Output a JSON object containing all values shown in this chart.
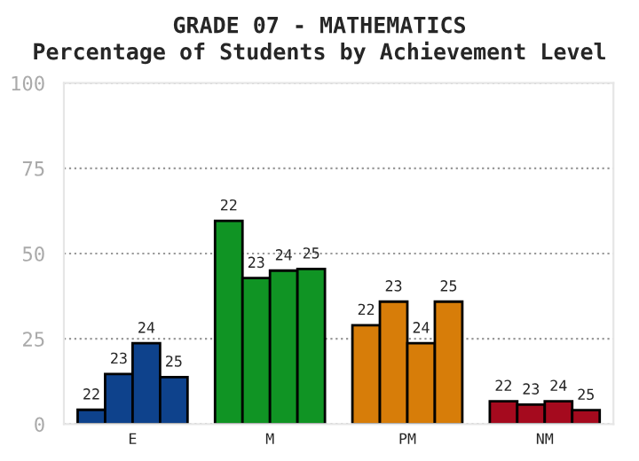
{
  "chart_data": {
    "type": "bar",
    "title": "GRADE 07 - MATHEMATICS",
    "subtitle": "Percentage of Students by Achievement Level",
    "categories": [
      "E",
      "M",
      "PM",
      "NM"
    ],
    "series": [
      {
        "name": "22",
        "colors": [
          "#0e428c",
          "#109424",
          "#d77d09",
          "#a50a1e"
        ],
        "values": [
          4.2,
          59.6,
          29,
          6.7
        ]
      },
      {
        "name": "23",
        "colors": [
          "#0e428c",
          "#109424",
          "#d77d09",
          "#a50a1e"
        ],
        "values": [
          14.7,
          42.8,
          35.9,
          5.7
        ]
      },
      {
        "name": "24",
        "colors": [
          "#0e428c",
          "#109424",
          "#d77d09",
          "#a50a1e"
        ],
        "values": [
          23.7,
          45,
          23.7,
          6.7
        ]
      },
      {
        "name": "25",
        "colors": [
          "#0e428c",
          "#109424",
          "#d77d09",
          "#a50a1e"
        ],
        "values": [
          13.8,
          45.5,
          35.9,
          4.1
        ]
      }
    ],
    "ylim": [
      0,
      100
    ],
    "yticks": [
      0,
      25,
      50,
      75,
      100
    ],
    "grid": "y",
    "legend": false
  }
}
